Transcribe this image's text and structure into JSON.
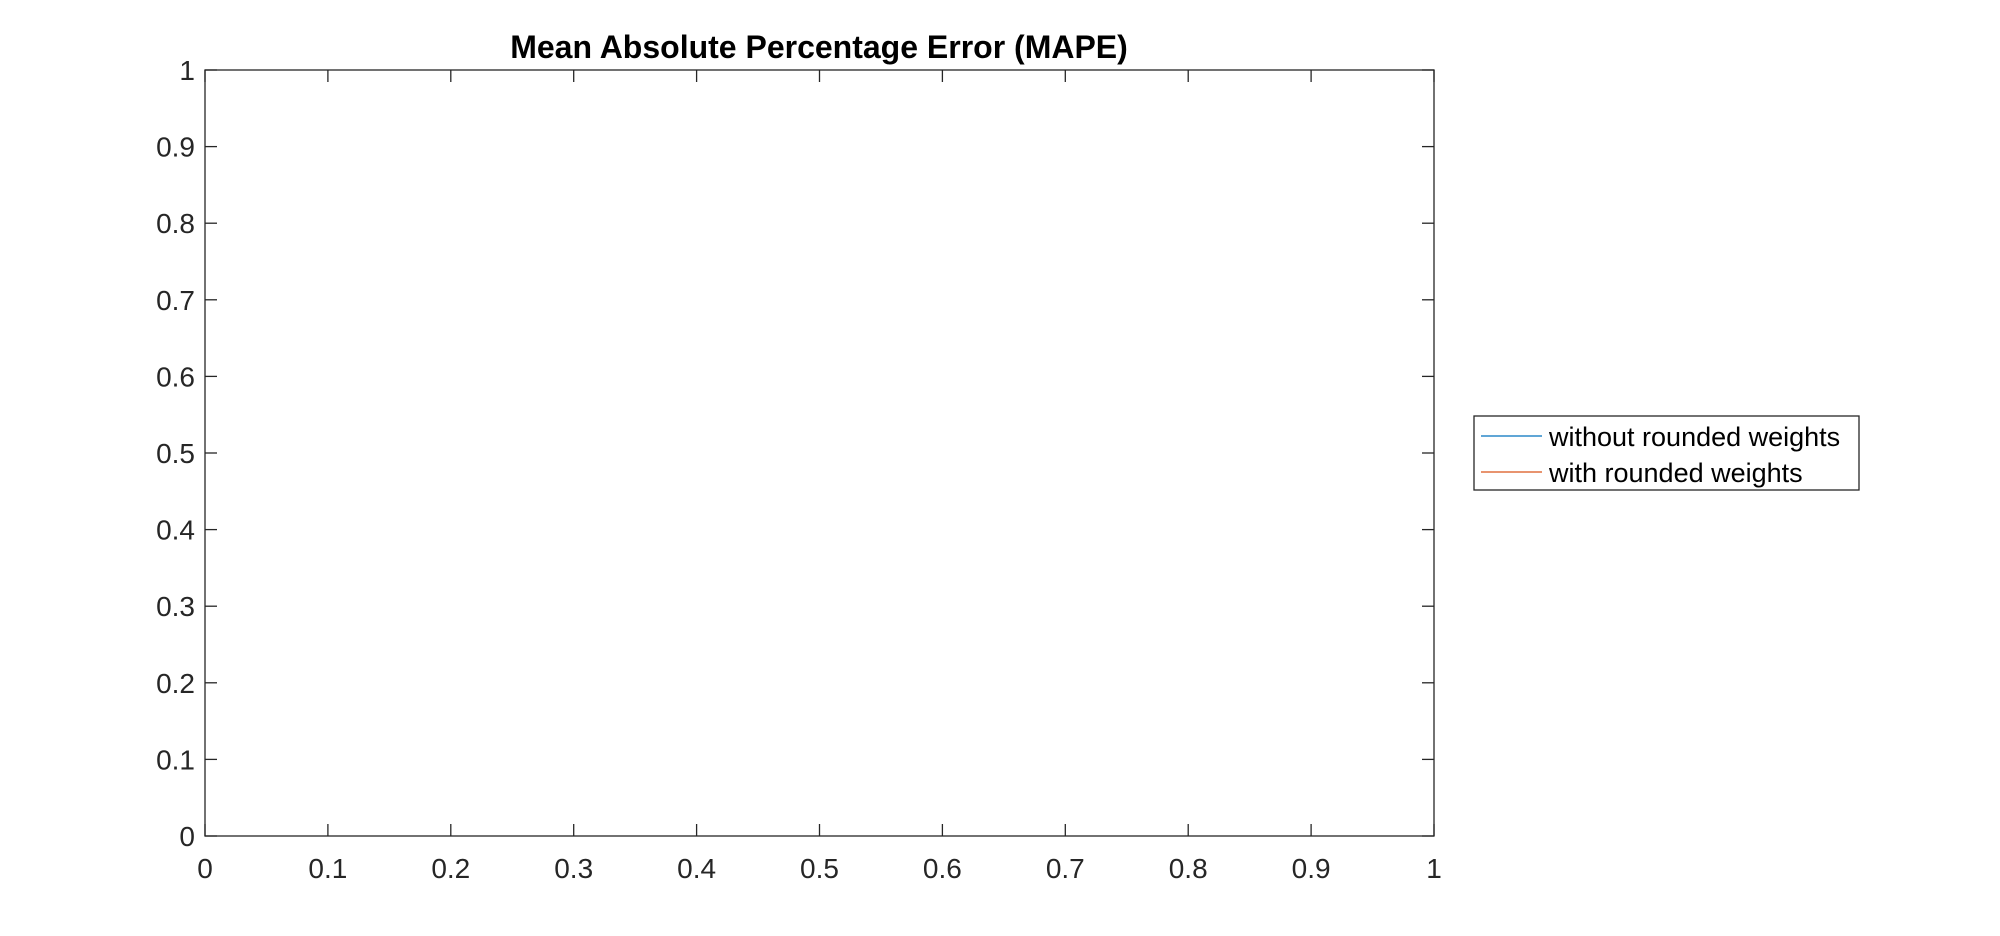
{
  "chart_data": {
    "type": "line",
    "title": "Mean Absolute Percentage Error (MAPE)",
    "xlabel": "",
    "ylabel": "",
    "xlim": [
      0,
      1
    ],
    "ylim": [
      0,
      1
    ],
    "x_ticks": [
      "0",
      "0.1",
      "0.2",
      "0.3",
      "0.4",
      "0.5",
      "0.6",
      "0.7",
      "0.8",
      "0.9",
      "1"
    ],
    "y_ticks": [
      "0",
      "0.1",
      "0.2",
      "0.3",
      "0.4",
      "0.5",
      "0.6",
      "0.7",
      "0.8",
      "0.9",
      "1"
    ],
    "grid": false,
    "legend_position": "outside-right",
    "series": [
      {
        "name": "without rounded weights",
        "color": "#0072BD",
        "x": [],
        "y": []
      },
      {
        "name": "with rounded weights",
        "color": "#D95319",
        "x": [],
        "y": []
      }
    ]
  }
}
